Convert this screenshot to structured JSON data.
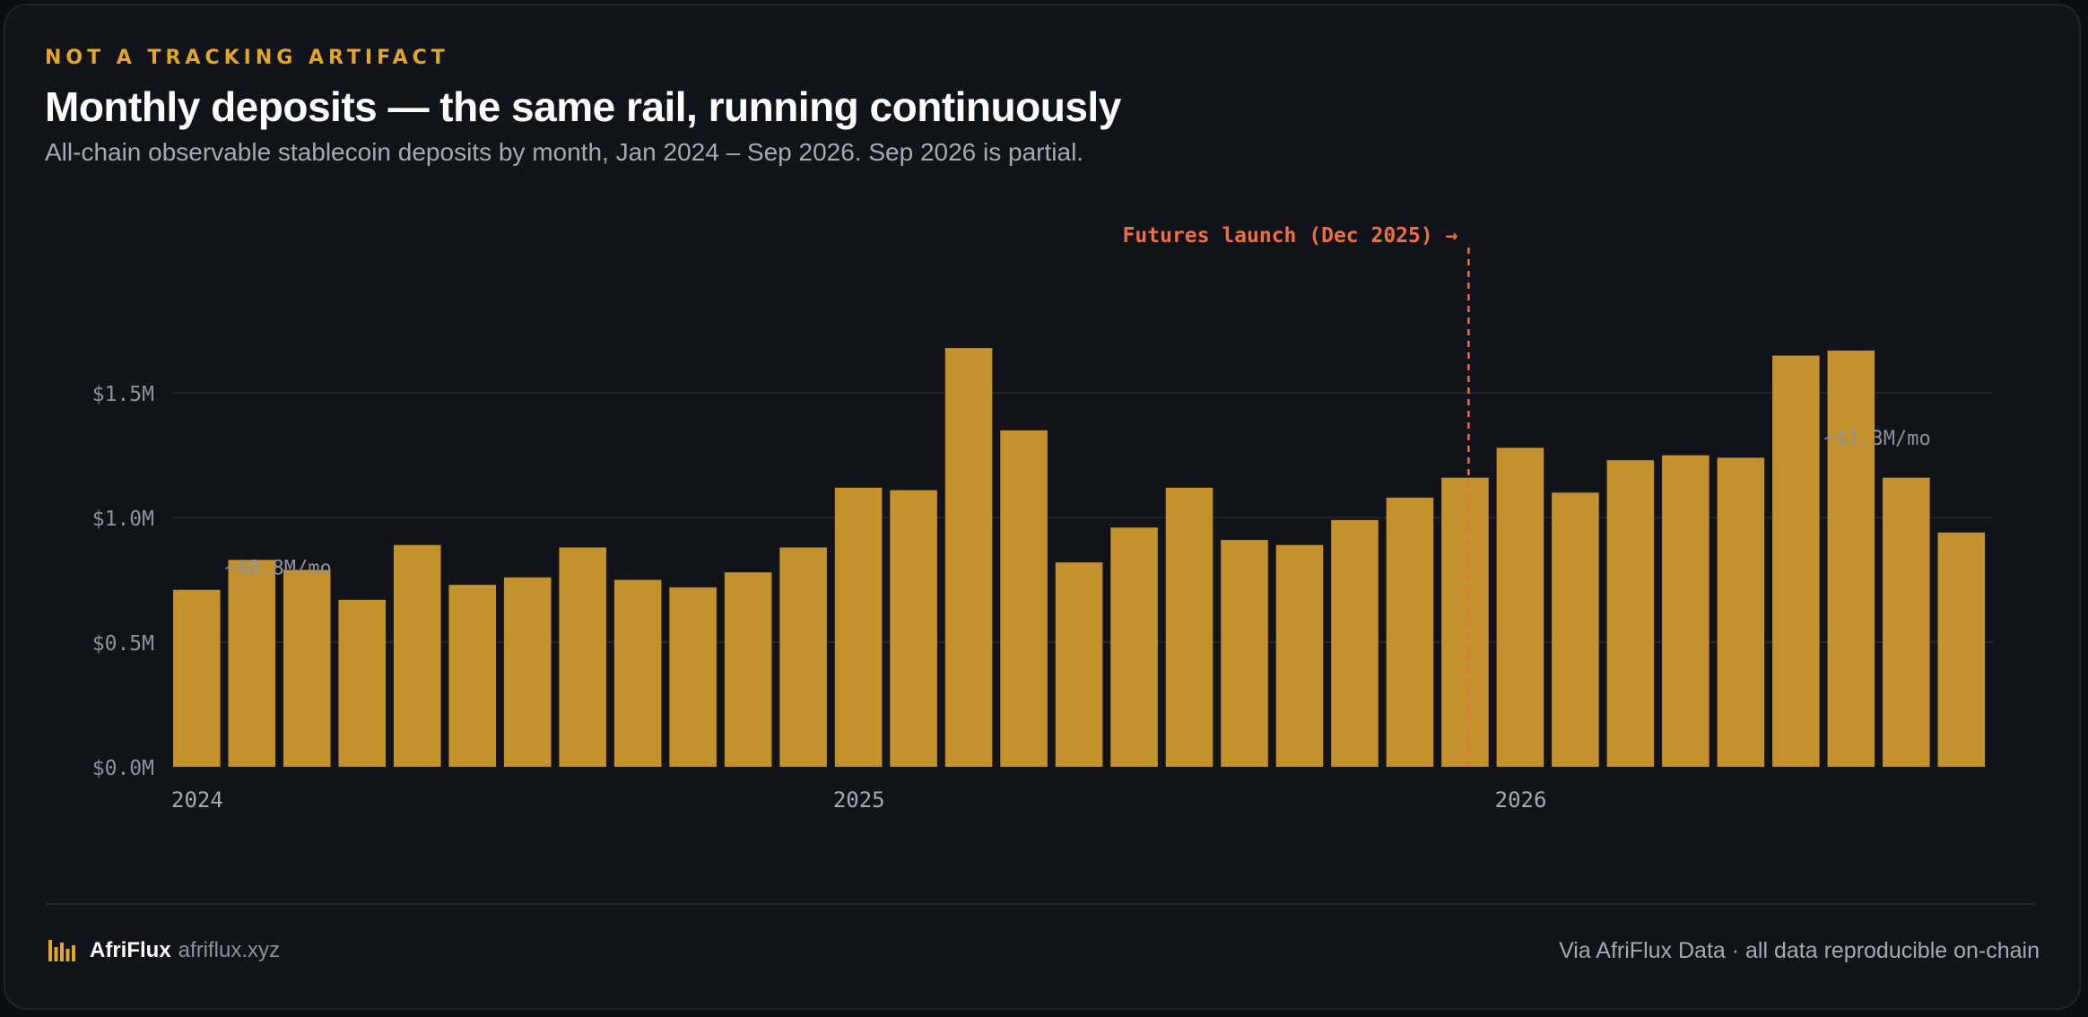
{
  "header": {
    "kicker": "NOT A TRACKING ARTIFACT",
    "title": "Monthly deposits — the same rail, running continuously",
    "subtitle": "All-chain observable stablecoin deposits by month, Jan 2024 – Sep 2026. Sep 2026 is partial."
  },
  "chart_data": {
    "type": "bar",
    "title": "Monthly deposits — the same rail, running continuously",
    "subtitle": "All-chain observable stablecoin deposits by month, Jan 2024 – Sep 2026. Sep 2026 is partial.",
    "xlabel": "",
    "ylabel": "",
    "categories": [
      "Jan 2024",
      "Feb 2024",
      "Mar 2024",
      "Apr 2024",
      "May 2024",
      "Jun 2024",
      "Jul 2024",
      "Aug 2024",
      "Sep 2024",
      "Oct 2024",
      "Nov 2024",
      "Dec 2024",
      "Jan 2025",
      "Feb 2025",
      "Mar 2025",
      "Apr 2025",
      "May 2025",
      "Jun 2025",
      "Jul 2025",
      "Aug 2025",
      "Sep 2025",
      "Oct 2025",
      "Nov 2025",
      "Dec 2025",
      "Jan 2026",
      "Feb 2026",
      "Mar 2026",
      "Apr 2026",
      "May 2026",
      "Jun 2026",
      "Jul 2026",
      "Aug 2026",
      "Sep 2026"
    ],
    "values": [
      0.71,
      0.83,
      0.79,
      0.67,
      0.89,
      0.73,
      0.76,
      0.88,
      0.75,
      0.72,
      0.78,
      0.88,
      1.12,
      1.11,
      1.68,
      1.35,
      0.82,
      0.96,
      1.12,
      0.91,
      0.89,
      0.99,
      1.08,
      1.16,
      1.28,
      1.1,
      1.23,
      1.25,
      1.24,
      1.65,
      1.67,
      1.16,
      0.94
    ],
    "ylim": [
      0,
      1.9
    ],
    "yticks": [
      0.0,
      0.5,
      1.0,
      1.5
    ],
    "ytick_labels": [
      "$0.0M",
      "$0.5M",
      "$1.0M",
      "$1.5M"
    ],
    "xtick_labels": [
      {
        "label": "2024",
        "index": 0
      },
      {
        "label": "2025",
        "index": 12
      },
      {
        "label": "2026",
        "index": 24
      }
    ],
    "grid": "horizontal",
    "bar_color": "#c4912b",
    "annotations": [
      {
        "text": "Futures launch (Dec 2025) →",
        "index": 23,
        "type": "event-line",
        "color": "#ec6f47"
      },
      {
        "text": "~$0.8M/mo",
        "index": 1,
        "value": 0.8,
        "type": "average-label"
      },
      {
        "text": "~$1.3M/mo",
        "index": 30,
        "value": 1.32,
        "type": "average-label"
      }
    ]
  },
  "footer": {
    "brand_name": "AfriFlux",
    "brand_url": "afriflux.xyz",
    "source": "Via AfriFlux Data · all data reproducible on-chain"
  },
  "colors": {
    "accent": "#e0a729",
    "bar": "#c4912b",
    "event": "#ec6f47",
    "background": "#111319"
  }
}
